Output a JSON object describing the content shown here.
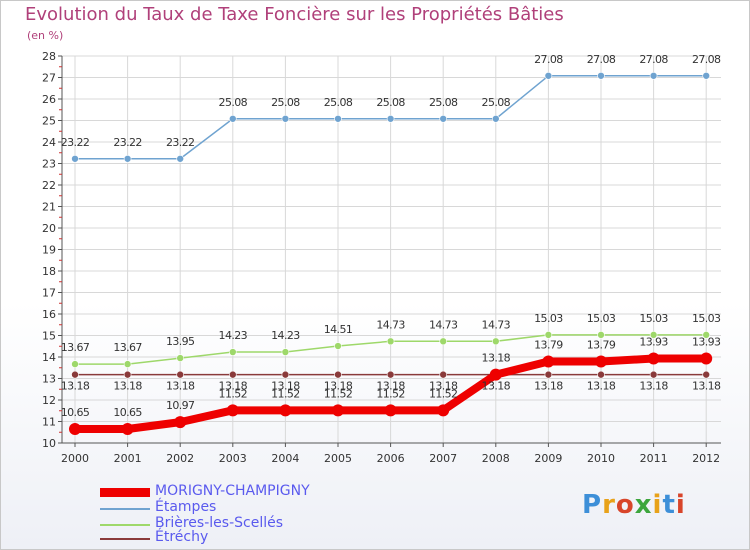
{
  "chart_data": {
    "type": "line",
    "title": "Evolution du Taux de Taxe Foncière sur les Propriétés Bâties",
    "ylabel": "(en %)",
    "xlabel": "",
    "categories": [
      "2000",
      "2001",
      "2002",
      "2003",
      "2004",
      "2005",
      "2006",
      "2007",
      "2008",
      "2009",
      "2010",
      "2011",
      "2012"
    ],
    "ylim": [
      10,
      28
    ],
    "yticks": [
      "10",
      "11",
      "12",
      "13",
      "14",
      "15",
      "16",
      "17",
      "18",
      "19",
      "20",
      "21",
      "22",
      "23",
      "24",
      "25",
      "26",
      "27",
      "28"
    ],
    "series": [
      {
        "name": "MORIGNY-CHAMPIGNY",
        "color": "#ee0000",
        "values": [
          10.65,
          10.65,
          10.97,
          11.52,
          11.52,
          11.52,
          11.52,
          11.52,
          13.18,
          13.79,
          13.79,
          13.93,
          13.93
        ],
        "labels": [
          "10.65",
          "10.65",
          "10.97",
          "11.52",
          "11.52",
          "11.52",
          "11.52",
          "11.52",
          "13.18",
          "13.79",
          "13.79",
          "13.93",
          "13.93"
        ]
      },
      {
        "name": "Étampes",
        "color": "#6fa3d0",
        "values": [
          23.22,
          23.22,
          23.22,
          25.08,
          25.08,
          25.08,
          25.08,
          25.08,
          25.08,
          27.08,
          27.08,
          27.08,
          27.08
        ],
        "labels": [
          "23.22",
          "23.22",
          "23.22",
          "25.08",
          "25.08",
          "25.08",
          "25.08",
          "25.08",
          "25.08",
          "27.08",
          "27.08",
          "27.08",
          "27.08"
        ]
      },
      {
        "name": "Brières-les-Scellés",
        "color": "#9ed86a",
        "values": [
          13.67,
          13.67,
          13.95,
          14.23,
          14.23,
          14.51,
          14.73,
          14.73,
          14.73,
          15.03,
          15.03,
          15.03,
          15.03
        ],
        "labels": [
          "13.67",
          "13.67",
          "13.95",
          "14.23",
          "14.23",
          "14.51",
          "14.73",
          "14.73",
          "14.73",
          "15.03",
          "15.03",
          "15.03",
          "15.03"
        ]
      },
      {
        "name": "Étréchy",
        "color": "#8a3a3a",
        "values": [
          13.18,
          13.18,
          13.18,
          13.18,
          13.18,
          13.18,
          13.18,
          13.18,
          13.18,
          13.18,
          13.18,
          13.18,
          13.18
        ],
        "labels": [
          "13.18",
          "13.18",
          "13.18",
          "13.18",
          "13.18",
          "13.18",
          "13.18",
          "13.18",
          "13.18",
          "13.18",
          "13.18",
          "13.18",
          "13.18"
        ]
      }
    ]
  },
  "legend": {
    "items": [
      "MORIGNY-CHAMPIGNY",
      "Étampes",
      "Brières-les-Scellés",
      "Étréchy"
    ]
  },
  "logo": {
    "text": "Proxiti"
  }
}
